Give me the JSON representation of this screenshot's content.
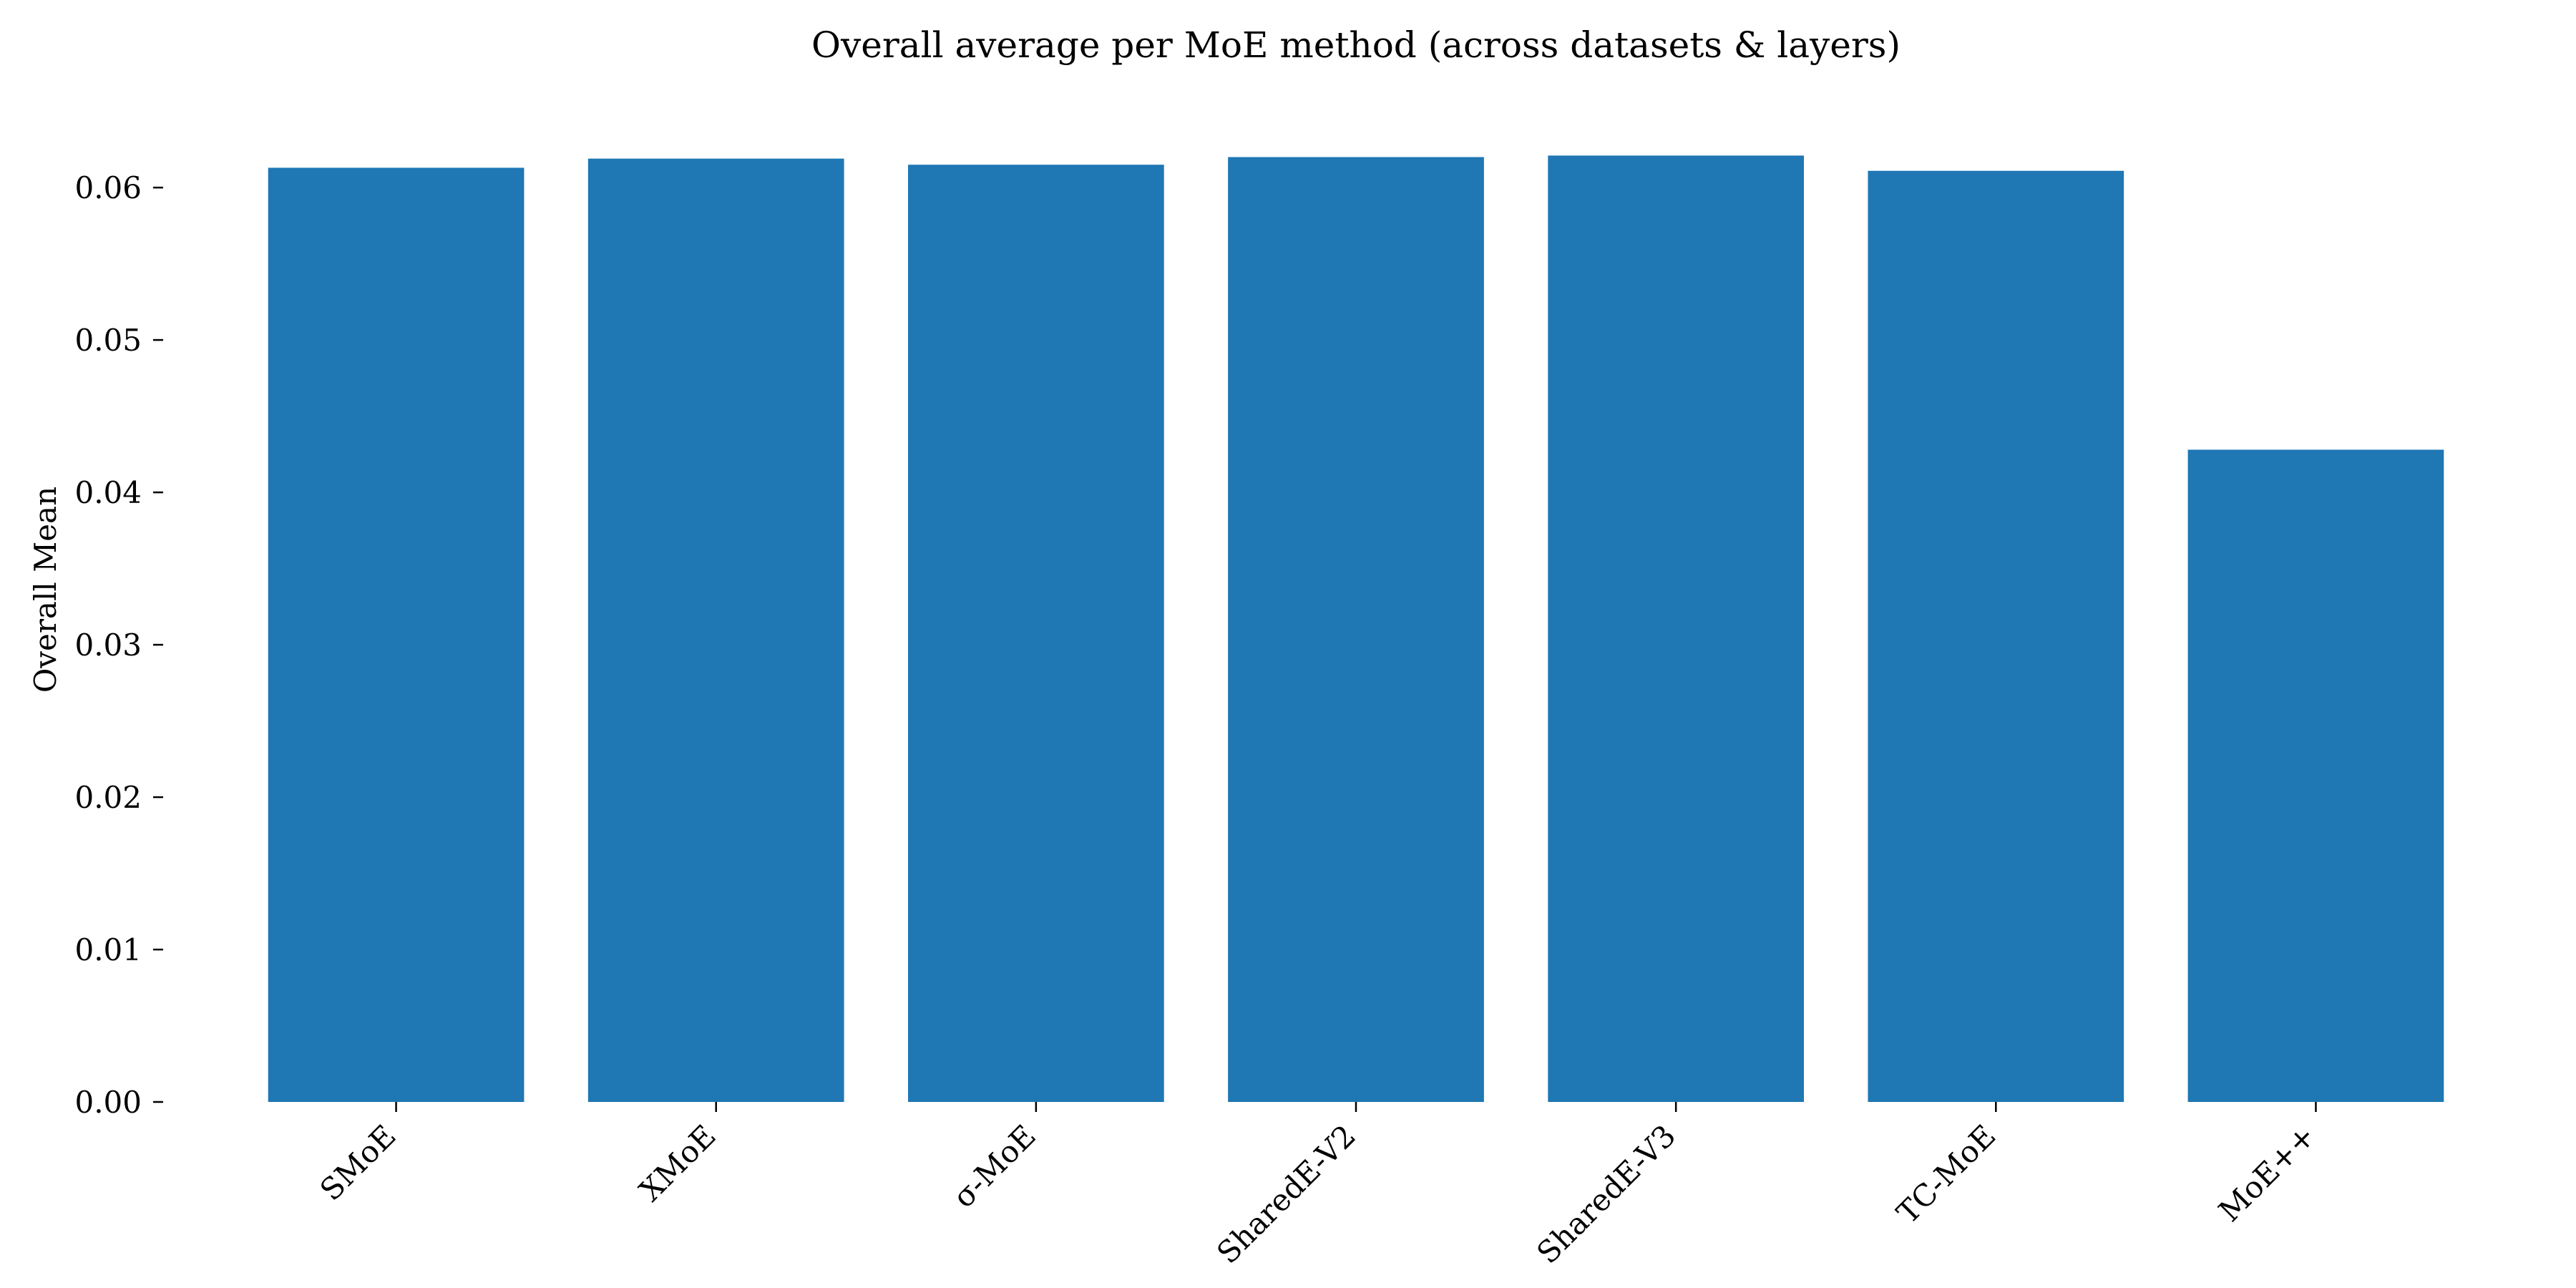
{
  "chart_data": {
    "type": "bar",
    "title": "Overall average per MoE method (across datasets & layers)",
    "xlabel": "",
    "ylabel": "Overall Mean",
    "categories": [
      "SMoE",
      "XMoE",
      "σ-MoE",
      "SharedE-V2",
      "SharedE-V3",
      "TC-MoE",
      "MoE++"
    ],
    "values": [
      0.0613,
      0.0619,
      0.0615,
      0.062,
      0.0621,
      0.0611,
      0.0428
    ],
    "ylim": [
      0,
      0.0655
    ],
    "yticks": [
      0.0,
      0.01,
      0.02,
      0.03,
      0.04,
      0.05,
      0.06
    ],
    "ytick_labels": [
      "0.00",
      "0.01",
      "0.02",
      "0.03",
      "0.04",
      "0.05",
      "0.06"
    ],
    "bar_color": "#1f77b4",
    "grid": false,
    "legend": "none"
  }
}
